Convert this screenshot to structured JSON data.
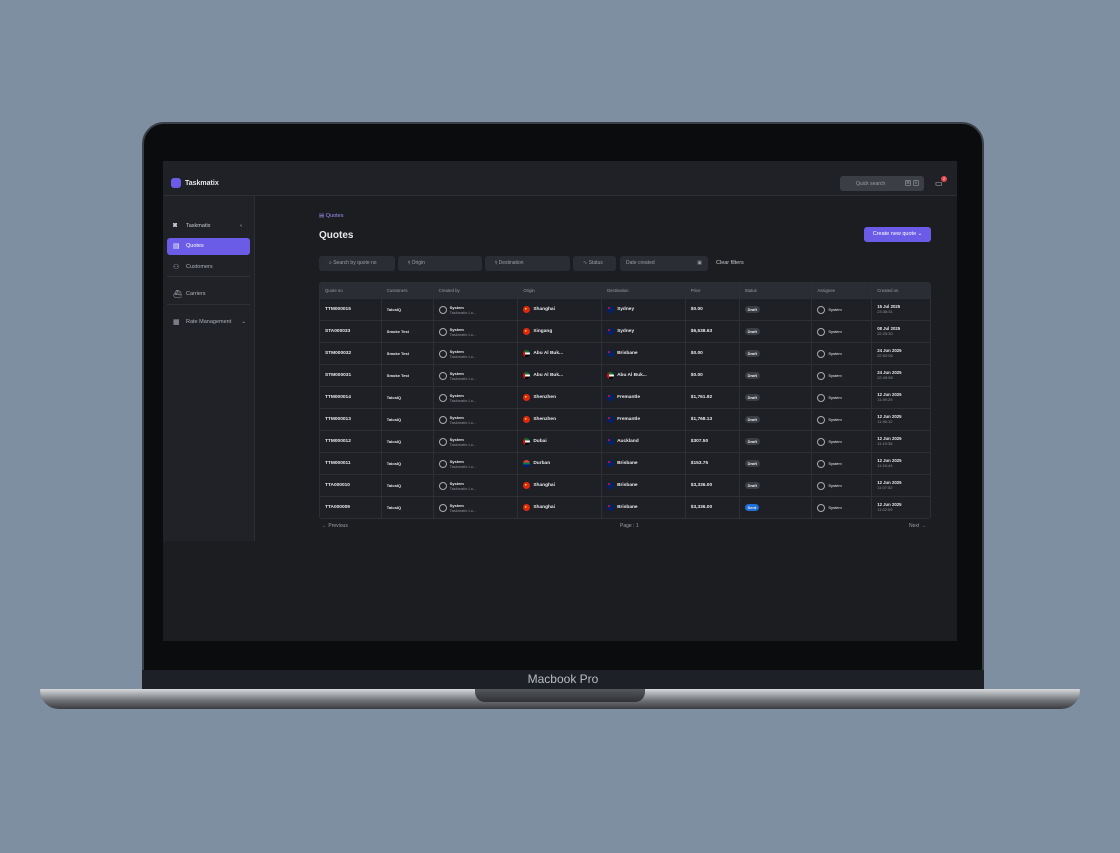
{
  "device_label": "Macbook Pro",
  "app": {
    "name": "Taskmatix",
    "quick_search": "Quick search",
    "shortcut": [
      "⌘",
      "K"
    ],
    "notification_count": "2"
  },
  "sidebar": {
    "workspace": "Taskmatix",
    "items": [
      {
        "label": "Quotes",
        "icon": "document-icon",
        "active": true
      },
      {
        "label": "Customers",
        "icon": "users-icon"
      },
      {
        "label": "Carriers",
        "icon": "ship-icon"
      },
      {
        "label": "Rate Management",
        "icon": "calculator-icon"
      }
    ]
  },
  "breadcrumb": "Quotes",
  "title": "Quotes",
  "create_button": "Create new quote",
  "filters": {
    "search_placeholder": "Search by quote no",
    "origin": "Origin",
    "destination": "Destination",
    "status": "Status",
    "date": "Date created",
    "clear": "Clear filters"
  },
  "colors": {
    "accent": "#6b5ce7",
    "sent": "#1f6fd6"
  },
  "table": {
    "headers": [
      "Quote no",
      "Customers",
      "Created by",
      "Origin",
      "Destination",
      "Price",
      "Status",
      "Assignee",
      "Created on"
    ],
    "rows": [
      {
        "no": "TTM000015",
        "customer": "TalosIQ",
        "by": "System",
        "by_sub": "Taskmatix Lo...",
        "origin": "Shanghai",
        "of": "cn",
        "dest": "Sydney",
        "df": "au",
        "price": "$0.00",
        "status": "Draft",
        "assignee": "System",
        "date": "15 Jul 2025",
        "time": "23:38:31"
      },
      {
        "no": "STA000033",
        "customer": "Smoke Test",
        "by": "System",
        "by_sub": "Taskmatix Lo...",
        "origin": "Xingang",
        "of": "cn",
        "dest": "Sydney",
        "df": "au",
        "price": "$6,538.63",
        "status": "Draft",
        "assignee": "System",
        "date": "08 Jul 2025",
        "time": "22:25:30"
      },
      {
        "no": "STM000032",
        "customer": "Smoke Test",
        "by": "System",
        "by_sub": "Taskmatix Lo...",
        "origin": "Abu Al Buk...",
        "of": "ae",
        "dest": "Brisbane",
        "df": "au",
        "price": "$0.00",
        "status": "Draft",
        "assignee": "System",
        "date": "24 Jun 2025",
        "time": "22:52:06"
      },
      {
        "no": "STM000031",
        "customer": "Smoke Test",
        "by": "System",
        "by_sub": "Taskmatix Lo...",
        "origin": "Abu Al Buk...",
        "of": "ae",
        "dest": "Abu Al Buk...",
        "df": "ae",
        "price": "$0.00",
        "status": "Draft",
        "assignee": "System",
        "date": "24 Jun 2025",
        "time": "22:49:58"
      },
      {
        "no": "TTM000014",
        "customer": "TalosIQ",
        "by": "System",
        "by_sub": "Taskmatix Lo...",
        "origin": "Shenzhen",
        "of": "cn",
        "dest": "Fremantle",
        "df": "au",
        "price": "$1,761.92",
        "status": "Draft",
        "assignee": "System",
        "date": "12 Jun 2025",
        "time": "11:49:29"
      },
      {
        "no": "TTM000013",
        "customer": "TalosIQ",
        "by": "System",
        "by_sub": "Taskmatix Lo...",
        "origin": "Shenzhen",
        "of": "cn",
        "dest": "Fremantle",
        "df": "au",
        "price": "$1,768.13",
        "status": "Draft",
        "assignee": "System",
        "date": "12 Jun 2025",
        "time": "11:46:12"
      },
      {
        "no": "TTM000012",
        "customer": "TalosIQ",
        "by": "System",
        "by_sub": "Taskmatix Lo...",
        "origin": "Dubai",
        "of": "ae",
        "dest": "Auckland",
        "df": "nz",
        "price": "$307.50",
        "status": "Draft",
        "assignee": "System",
        "date": "12 Jun 2025",
        "time": "11:19:38"
      },
      {
        "no": "TTM000011",
        "customer": "TalosIQ",
        "by": "System",
        "by_sub": "Taskmatix Lo...",
        "origin": "Durban",
        "of": "za",
        "dest": "Brisbane",
        "df": "au",
        "price": "$153.75",
        "status": "Draft",
        "assignee": "System",
        "date": "12 Jun 2025",
        "time": "11:16:44"
      },
      {
        "no": "TTA000010",
        "customer": "TalosIQ",
        "by": "System",
        "by_sub": "Taskmatix Lo...",
        "origin": "Shanghai",
        "of": "cn",
        "dest": "Brisbane",
        "df": "au",
        "price": "$3,336.00",
        "status": "Draft",
        "assignee": "System",
        "date": "12 Jun 2025",
        "time": "11:07:52"
      },
      {
        "no": "TTA000009",
        "customer": "TalosIQ",
        "by": "System",
        "by_sub": "Taskmatix Lo...",
        "origin": "Shanghai",
        "of": "cn",
        "dest": "Brisbane",
        "df": "au",
        "price": "$3,336.00",
        "status": "Sent",
        "assignee": "System",
        "date": "12 Jun 2025",
        "time": "11:02:09"
      }
    ]
  },
  "pagination": {
    "previous": "← Previous",
    "page": "Page : 1",
    "next": "Next →"
  }
}
